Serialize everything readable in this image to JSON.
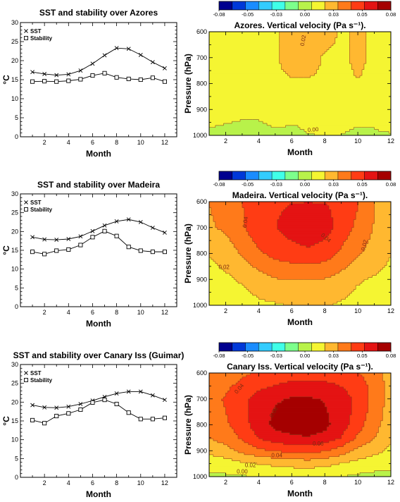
{
  "palette": [
    "#00008f",
    "#0038d8",
    "#1a8cff",
    "#33ccff",
    "#40ffe8",
    "#7dff8c",
    "#b8f24a",
    "#f5f532",
    "#ffb830",
    "#ff7a1a",
    "#ff3c14",
    "#e41313",
    "#a50000"
  ],
  "colorbar_ticks": [
    "-0.08",
    "-0.05",
    "-0.03",
    "0.00",
    "0.03",
    "0.05",
    "0.08"
  ],
  "chart_data": [
    {
      "type": "line",
      "title": "SST and stability over Azores",
      "xlabel": "Month",
      "ylabel": "°C",
      "xlim": [
        0,
        13
      ],
      "ylim": [
        0,
        30
      ],
      "x": [
        1,
        2,
        3,
        4,
        5,
        6,
        7,
        8,
        9,
        10,
        11,
        12
      ],
      "series": [
        {
          "name": "SST",
          "marker": "x",
          "values": [
            17.0,
            16.5,
            16.2,
            16.4,
            17.4,
            19.2,
            21.4,
            23.3,
            23.1,
            21.5,
            19.6,
            18.0
          ]
        },
        {
          "name": "Stability",
          "marker": "square",
          "values": [
            14.5,
            14.6,
            14.5,
            14.7,
            15.1,
            16.1,
            16.7,
            15.6,
            15.2,
            15.0,
            15.5,
            14.5
          ]
        }
      ]
    },
    {
      "type": "heatmap",
      "title": "Azores. Vertical velocity (Pa s⁻¹).",
      "xlabel": "Month",
      "ylabel": "Pressure (hPa)",
      "xlim": [
        1,
        12
      ],
      "ylim": [
        1000,
        600
      ],
      "months": [
        1,
        2,
        3,
        4,
        5,
        6,
        7,
        8,
        9,
        10,
        11,
        12
      ],
      "levels": [
        600,
        700,
        800,
        900,
        1000
      ],
      "values": [
        [
          0.016,
          0.016,
          0.016,
          0.016,
          0.016,
          0.026,
          0.03,
          0.026,
          0.016,
          0.021,
          0.016,
          0.016
        ],
        [
          0.016,
          0.016,
          0.016,
          0.016,
          0.016,
          0.026,
          0.027,
          0.016,
          0.016,
          0.021,
          0.016,
          0.016
        ],
        [
          0.016,
          0.016,
          0.016,
          0.016,
          0.016,
          0.016,
          0.016,
          0.016,
          0.016,
          0.018,
          0.016,
          0.016
        ],
        [
          0.009,
          0.009,
          0.009,
          0.009,
          0.012,
          0.009,
          0.009,
          0.012,
          0.016,
          0.016,
          0.009,
          0.016
        ],
        [
          0.005,
          0.004,
          0.002,
          0.002,
          0.004,
          0.004,
          0.006,
          0.006,
          0.006,
          0.001,
          0.005,
          0.005
        ]
      ],
      "contour_labels": [
        "0.02",
        "0.00"
      ]
    },
    {
      "type": "line",
      "title": "SST and stability over Madeira",
      "xlabel": "Month",
      "ylabel": "°C",
      "xlim": [
        0,
        13
      ],
      "ylim": [
        0,
        30
      ],
      "x": [
        1,
        2,
        3,
        4,
        5,
        6,
        7,
        8,
        9,
        10,
        11,
        12
      ],
      "series": [
        {
          "name": "SST",
          "marker": "x",
          "values": [
            18.5,
            17.9,
            17.8,
            18.0,
            18.7,
            20.1,
            21.6,
            22.7,
            23.2,
            22.5,
            21.0,
            19.7
          ]
        },
        {
          "name": "Stability",
          "marker": "square",
          "values": [
            14.6,
            14.0,
            14.9,
            15.2,
            16.4,
            18.5,
            20.1,
            18.8,
            15.9,
            14.9,
            14.6,
            14.6
          ]
        }
      ]
    },
    {
      "type": "heatmap",
      "title": "Madeira. Vertical velocity (Pa s⁻¹).",
      "xlabel": "Month",
      "ylabel": "Pressure (hPa)",
      "xlim": [
        1,
        12
      ],
      "ylim": [
        1000,
        600
      ],
      "months": [
        1,
        2,
        3,
        4,
        5,
        6,
        7,
        8,
        9,
        10,
        11,
        12
      ],
      "levels": [
        600,
        700,
        800,
        900,
        1000
      ],
      "values": [
        [
          0.031,
          0.036,
          0.043,
          0.05,
          0.053,
          0.055,
          0.055,
          0.055,
          0.053,
          0.044,
          0.031,
          0.018
        ],
        [
          0.029,
          0.033,
          0.041,
          0.052,
          0.055,
          0.061,
          0.066,
          0.061,
          0.05,
          0.04,
          0.03,
          0.019
        ],
        [
          0.019,
          0.024,
          0.032,
          0.041,
          0.047,
          0.05,
          0.052,
          0.049,
          0.041,
          0.032,
          0.026,
          0.019
        ],
        [
          0.013,
          0.016,
          0.02,
          0.025,
          0.03,
          0.031,
          0.031,
          0.03,
          0.026,
          0.02,
          0.017,
          0.014
        ],
        [
          0.01,
          0.01,
          0.013,
          0.016,
          0.017,
          0.019,
          0.019,
          0.019,
          0.017,
          0.013,
          0.01,
          0.009
        ]
      ],
      "contour_labels": [
        "0.04",
        "0.04",
        "0.02",
        "0.02"
      ]
    },
    {
      "type": "line",
      "title": "SST and stability over Canary Iss (Guimar)",
      "xlabel": "Month",
      "ylabel": "°C",
      "xlim": [
        0,
        13
      ],
      "ylim": [
        0,
        30
      ],
      "x": [
        1,
        2,
        3,
        4,
        5,
        6,
        7,
        8,
        9,
        10,
        11,
        12
      ],
      "series": [
        {
          "name": "SST",
          "marker": "x",
          "values": [
            19.2,
            18.6,
            18.5,
            18.8,
            19.5,
            20.4,
            21.4,
            22.3,
            22.8,
            22.8,
            21.8,
            20.6
          ]
        },
        {
          "name": "Stability",
          "marker": "square",
          "values": [
            15.2,
            14.4,
            16.3,
            17.0,
            18.0,
            19.9,
            20.6,
            19.5,
            17.2,
            15.5,
            15.5,
            15.8
          ]
        }
      ]
    },
    {
      "type": "heatmap",
      "title": "Canary Iss. Vertical velocity (Pa s⁻¹).",
      "xlabel": "Month",
      "ylabel": "Pressure (hPa)",
      "xlim": [
        1,
        12
      ],
      "ylim": [
        1000,
        600
      ],
      "months": [
        1,
        2,
        3,
        4,
        5,
        6,
        7,
        8,
        9,
        10,
        11,
        12
      ],
      "levels": [
        600,
        650,
        700,
        750,
        800,
        850,
        900,
        950,
        1000
      ],
      "values": [
        [
          0.034,
          0.036,
          0.041,
          0.044,
          0.047,
          0.049,
          0.05,
          0.049,
          0.047,
          0.044,
          0.036,
          0.024
        ],
        [
          0.038,
          0.041,
          0.046,
          0.052,
          0.056,
          0.059,
          0.059,
          0.059,
          0.055,
          0.049,
          0.039,
          0.026
        ],
        [
          0.04,
          0.044,
          0.051,
          0.061,
          0.066,
          0.069,
          0.069,
          0.067,
          0.061,
          0.052,
          0.039,
          0.026
        ],
        [
          0.038,
          0.043,
          0.052,
          0.062,
          0.069,
          0.072,
          0.072,
          0.069,
          0.062,
          0.051,
          0.037,
          0.025
        ],
        [
          0.036,
          0.041,
          0.05,
          0.062,
          0.071,
          0.073,
          0.074,
          0.071,
          0.061,
          0.048,
          0.035,
          0.024
        ],
        [
          0.031,
          0.036,
          0.045,
          0.056,
          0.063,
          0.066,
          0.067,
          0.064,
          0.055,
          0.041,
          0.031,
          0.021
        ],
        [
          0.022,
          0.026,
          0.034,
          0.04,
          0.044,
          0.046,
          0.047,
          0.044,
          0.037,
          0.028,
          0.022,
          0.016
        ],
        [
          0.011,
          0.013,
          0.016,
          0.019,
          0.021,
          0.023,
          0.024,
          0.022,
          0.018,
          0.014,
          0.011,
          0.009
        ],
        [
          0.003,
          0.004,
          0.005,
          0.006,
          0.007,
          0.008,
          0.008,
          0.007,
          0.006,
          0.004,
          0.003,
          0.003
        ]
      ],
      "contour_labels": [
        "0.04",
        "0.06",
        "0.06",
        "0.04",
        "0.02",
        "0.00"
      ]
    }
  ]
}
